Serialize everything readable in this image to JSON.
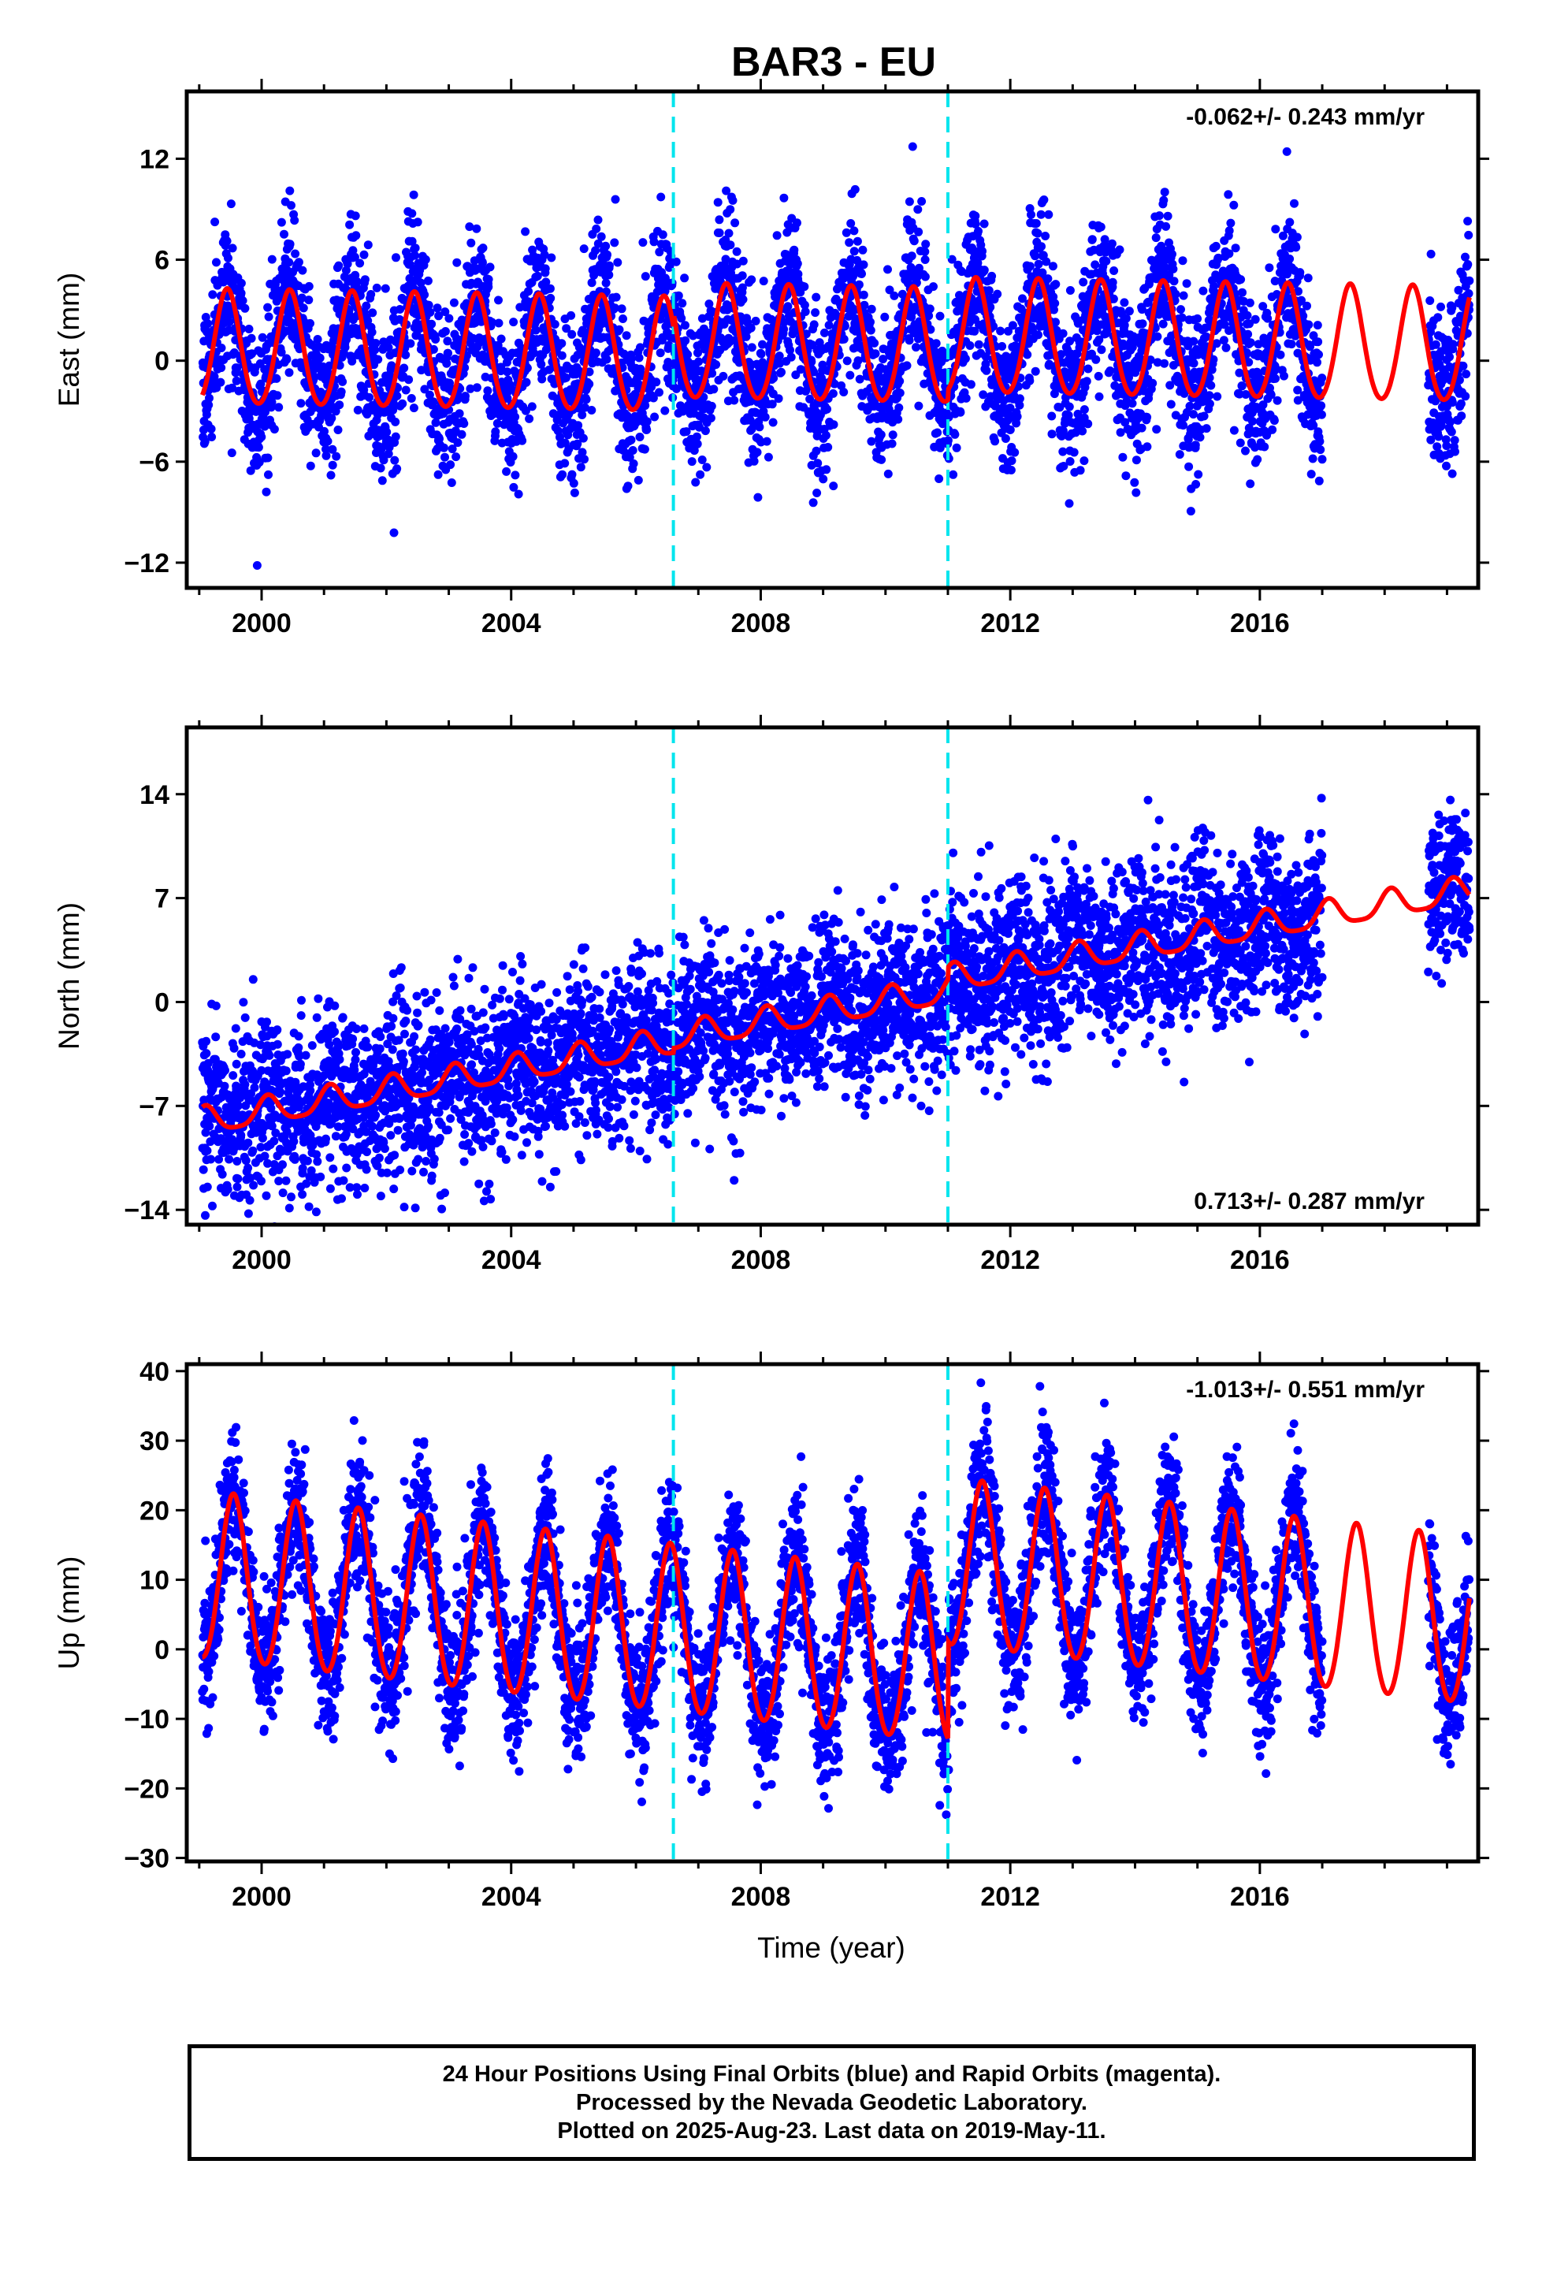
{
  "title": "BAR3 - EU",
  "xlabel": "Time (year)",
  "footer": {
    "line1": "24 Hour Positions Using Final Orbits (blue) and Rapid Orbits (magenta).",
    "line2": "Processed by the Nevada Geodetic Laboratory.",
    "line3": "Plotted on 2025-Aug-23. Last data on 2019-May-11."
  },
  "colors": {
    "data_points": "#0000ff",
    "model_fit": "#ff0000",
    "equipment_change": "#00e5ee",
    "axes": "#000000"
  },
  "chart_data": [
    {
      "type": "scatter",
      "component": "east",
      "ylabel": "East (mm)",
      "xlim": [
        1998.8,
        2019.5
      ],
      "ylim": [
        -13.5,
        16
      ],
      "yticks": [
        -12,
        -6,
        0,
        6,
        12
      ],
      "xticks": [
        2000,
        2004,
        2008,
        2012,
        2016
      ],
      "rate_text": "-0.062+/- 0.243 mm/yr",
      "rate_position": "top-right",
      "breaks": [
        2006.6,
        2011.0
      ],
      "data_span": [
        1999.05,
        2019.36
      ],
      "data_gaps": [
        [
          2017.0,
          2018.7
        ]
      ],
      "model": {
        "offset": 0.0,
        "rate": -0.062,
        "annual_amplitude": 3.4,
        "annual_phase_peak": 0.45,
        "semiannual_amplitude": 0.3,
        "step_offsets": [
          {
            "year": 2006.6,
            "offset": 0.8
          },
          {
            "year": 2011.0,
            "offset": 0.6
          }
        ]
      },
      "scatter_std": 2.3
    },
    {
      "type": "scatter",
      "component": "north",
      "ylabel": "North (mm)",
      "xlim": [
        1998.8,
        2019.5
      ],
      "ylim": [
        -15,
        18.5
      ],
      "yticks": [
        -14,
        -7,
        0,
        7,
        14
      ],
      "xticks": [
        2000,
        2004,
        2008,
        2012,
        2016
      ],
      "rate_text": "0.713+/- 0.287 mm/yr",
      "rate_position": "bottom-right",
      "breaks": [
        2006.6,
        2011.0
      ],
      "data_span": [
        1999.05,
        2019.36
      ],
      "data_gaps": [
        [
          2017.0,
          2018.7
        ]
      ],
      "model": {
        "offset": -1.0,
        "rate": 0.713,
        "annual_amplitude": 0.9,
        "annual_phase_peak": 0.1,
        "semiannual_amplitude": 0.2,
        "step_offsets": [
          {
            "year": 2006.6,
            "offset": 0.3
          },
          {
            "year": 2011.0,
            "offset": 0.8
          }
        ]
      },
      "scatter_std": 2.8
    },
    {
      "type": "scatter",
      "component": "up",
      "ylabel": "Up (mm)",
      "xlim": [
        1998.8,
        2019.5
      ],
      "ylim": [
        -30.5,
        41
      ],
      "yticks": [
        -30,
        -20,
        -10,
        0,
        10,
        20,
        30,
        40
      ],
      "xticks": [
        2000,
        2004,
        2008,
        2012,
        2016
      ],
      "rate_text": "-1.013+/- 0.551 mm/yr",
      "rate_position": "top-right",
      "breaks": [
        2006.6,
        2011.0
      ],
      "data_span": [
        1999.05,
        2019.36
      ],
      "data_gaps": [
        [
          2017.0,
          2018.7
        ]
      ],
      "model": {
        "offset": 0.0,
        "rate": -1.013,
        "annual_amplitude": 12.0,
        "annual_phase_peak": 0.55,
        "semiannual_amplitude": 0.8,
        "step_offsets": [
          {
            "year": 2006.6,
            "offset": 0.0
          },
          {
            "year": 2011.0,
            "offset": 14.0
          }
        ]
      },
      "scatter_std": 5.0
    }
  ]
}
